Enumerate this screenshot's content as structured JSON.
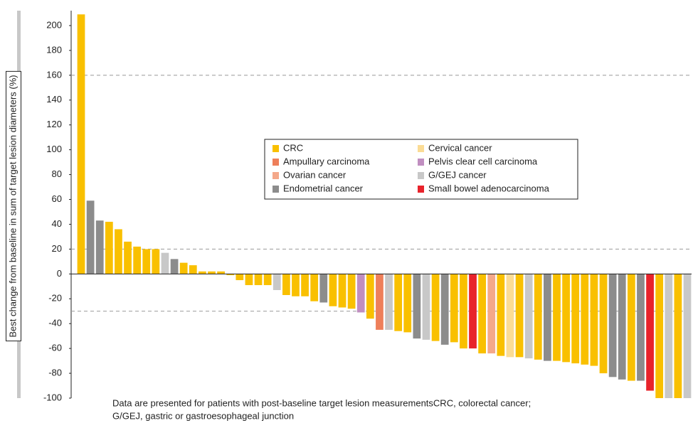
{
  "chart_data": {
    "type": "waterfall",
    "y_label": "Best change from baseline in sum of target lesion diameters (%)",
    "notes": [
      "Data are presented for patients with post-baseline target lesion measurementsCRC, colorectal cancer;",
      "G/GEJ, gastric or gastroesophageal junction"
    ],
    "ylim": [
      -100,
      212
    ],
    "yticks": [
      -100,
      -80,
      -60,
      -40,
      -20,
      0,
      20,
      40,
      60,
      80,
      100,
      120,
      140,
      160,
      180,
      200
    ],
    "reference_lines": [
      160,
      20,
      -30
    ],
    "legend": [
      {
        "name": "CRC",
        "color": "#f9c000"
      },
      {
        "name": "Ampullary carcinoma",
        "color": "#ee7f5a"
      },
      {
        "name": "Ovarian cancer",
        "color": "#f4a88a"
      },
      {
        "name": "Endometrial cancer",
        "color": "#8c8c8c"
      },
      {
        "name": "Cervical cancer",
        "color": "#fbdc95"
      },
      {
        "name": "Pelvis clear cell carcinoma",
        "color": "#c08ec0"
      },
      {
        "name": "G/GEJ cancer",
        "color": "#c8c8c8"
      },
      {
        "name": "Small bowel adenocarcinoma",
        "color": "#e8232b"
      }
    ],
    "groups": [
      "CRC",
      "Endometrial cancer",
      "Endometrial cancer",
      "CRC",
      "CRC",
      "CRC",
      "CRC",
      "CRC",
      "CRC",
      "G/GEJ cancer",
      "Endometrial cancer",
      "CRC",
      "CRC",
      "CRC",
      "CRC",
      "CRC",
      "CRC",
      "CRC",
      "CRC",
      "CRC",
      "CRC",
      "G/GEJ cancer",
      "CRC",
      "CRC",
      "CRC",
      "CRC",
      "Endometrial cancer",
      "CRC",
      "CRC",
      "CRC",
      "Pelvis clear cell carcinoma",
      "CRC",
      "Ampullary carcinoma",
      "G/GEJ cancer",
      "CRC",
      "CRC",
      "Endometrial cancer",
      "G/GEJ cancer",
      "CRC",
      "Endometrial cancer",
      "CRC",
      "CRC",
      "Small bowel adenocarcinoma",
      "CRC",
      "Ovarian cancer",
      "CRC",
      "Cervical cancer",
      "CRC",
      "G/GEJ cancer",
      "CRC",
      "Endometrial cancer",
      "CRC",
      "CRC",
      "CRC",
      "CRC",
      "CRC",
      "CRC",
      "Endometrial cancer",
      "Endometrial cancer",
      "CRC",
      "Endometrial cancer",
      "Small bowel adenocarcinoma",
      "CRC",
      "G/GEJ cancer",
      "CRC",
      "G/GEJ cancer"
    ],
    "values": [
      209,
      59,
      43,
      42,
      36,
      26,
      22,
      20,
      20,
      17,
      12,
      9,
      7,
      2,
      2,
      2,
      -1,
      -5,
      -9,
      -9,
      -9,
      -13,
      -17,
      -18,
      -18,
      -22,
      -23,
      -26,
      -27,
      -28,
      -31,
      -36,
      -45,
      -45,
      -46,
      -47,
      -52,
      -53,
      -54,
      -57,
      -55,
      -60,
      -60,
      -64,
      -64,
      -66,
      -67,
      -67,
      -68,
      -69,
      -70,
      -70,
      -71,
      -72,
      -73,
      -74,
      -80,
      -83,
      -85,
      -86,
      -86,
      -94,
      -100,
      -100,
      -100,
      -100
    ]
  }
}
